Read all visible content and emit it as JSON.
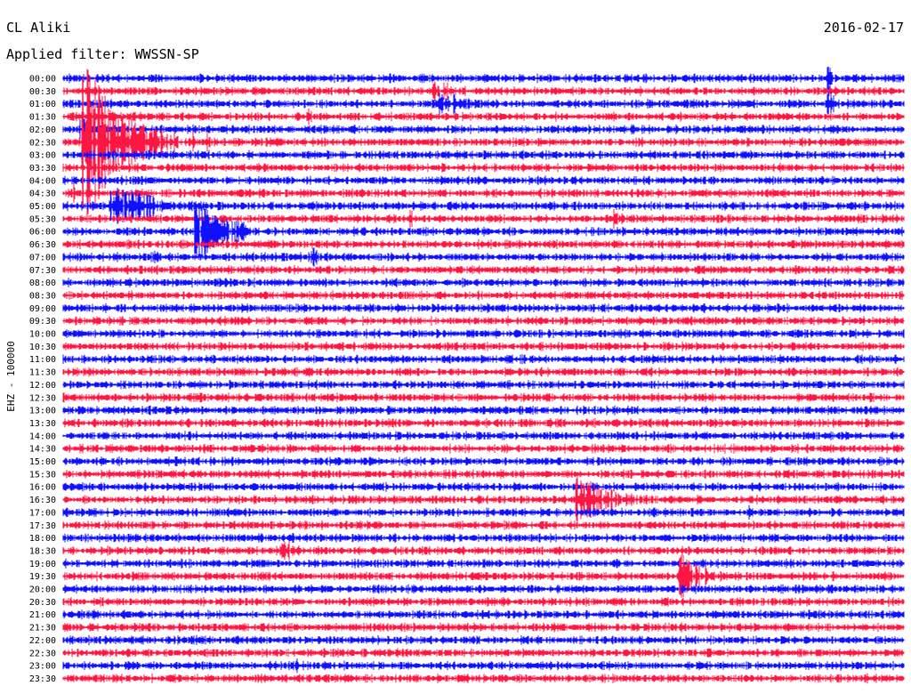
{
  "chart_data": {
    "type": "line",
    "title": "CL Aliki",
    "subtitle": "Applied filter: WWSSN-SP",
    "date": "2016-02-17",
    "ylabel": "EHZ - 100000",
    "grid": false,
    "colors": {
      "even": "#1010ff",
      "odd": "#ff1744"
    },
    "tick_labels": [
      "00:00",
      "00:30",
      "01:00",
      "01:30",
      "02:00",
      "02:30",
      "03:00",
      "03:30",
      "04:00",
      "04:30",
      "05:00",
      "05:30",
      "06:00",
      "06:30",
      "07:00",
      "07:30",
      "08:00",
      "08:30",
      "09:00",
      "09:30",
      "10:00",
      "10:30",
      "11:00",
      "11:30",
      "12:00",
      "12:30",
      "13:00",
      "13:30",
      "14:00",
      "14:30",
      "15:00",
      "15:30",
      "16:00",
      "16:30",
      "17:00",
      "17:30",
      "18:00",
      "18:30",
      "19:00",
      "19:30",
      "20:00",
      "20:30",
      "21:00",
      "21:30",
      "22:00",
      "22:30",
      "23:00",
      "23:30"
    ],
    "minutes_per_line": 30,
    "events": [
      {
        "line": 5,
        "minute": 0.7,
        "amplitude": 10.0,
        "duration": 3.2
      },
      {
        "line": 4,
        "minute": 0.6,
        "amplitude": 1.2,
        "duration": 0.8
      },
      {
        "line": 9,
        "minute": 0.3,
        "amplitude": 0.7,
        "duration": 0.5
      },
      {
        "line": 1,
        "minute": 13.2,
        "amplitude": 0.6,
        "duration": 1.5
      },
      {
        "line": 2,
        "minute": 13.4,
        "amplitude": 1.1,
        "duration": 1.6
      },
      {
        "line": 3,
        "minute": 8.7,
        "amplitude": 0.5,
        "duration": 0.7
      },
      {
        "line": 0,
        "minute": 27.3,
        "amplitude": 1.8,
        "duration": 0.3
      },
      {
        "line": 2,
        "minute": 27.3,
        "amplitude": 1.6,
        "duration": 0.4
      },
      {
        "line": 4,
        "minute": 20.3,
        "amplitude": 0.4,
        "duration": 0.5
      },
      {
        "line": 10,
        "minute": 1.7,
        "amplitude": 2.3,
        "duration": 2.8
      },
      {
        "line": 10,
        "minute": 2.5,
        "amplitude": 0.4,
        "duration": 1.0
      },
      {
        "line": 9,
        "minute": 16.8,
        "amplitude": 0.5,
        "duration": 1.0
      },
      {
        "line": 11,
        "minute": 12.2,
        "amplitude": 0.6,
        "duration": 0.8
      },
      {
        "line": 11,
        "minute": 19.6,
        "amplitude": 0.6,
        "duration": 0.7
      },
      {
        "line": 12,
        "minute": 4.7,
        "amplitude": 3.4,
        "duration": 2.0
      },
      {
        "line": 12,
        "minute": 6.1,
        "amplitude": 0.3,
        "duration": 0.4
      },
      {
        "line": 14,
        "minute": 3.1,
        "amplitude": 0.6,
        "duration": 0.5
      },
      {
        "line": 14,
        "minute": 8.8,
        "amplitude": 0.8,
        "duration": 0.8
      },
      {
        "line": 33,
        "minute": 18.3,
        "amplitude": 2.6,
        "duration": 2.6
      },
      {
        "line": 33,
        "minute": 12.1,
        "amplitude": 0.2,
        "duration": 0.5
      },
      {
        "line": 33,
        "minute": 24.4,
        "amplitude": 0.2,
        "duration": 1.5
      },
      {
        "line": 34,
        "minute": 24.4,
        "amplitude": 0.6,
        "duration": 0.3
      },
      {
        "line": 37,
        "minute": 7.8,
        "amplitude": 0.8,
        "duration": 0.5
      },
      {
        "line": 39,
        "minute": 2.5,
        "amplitude": 0.4,
        "duration": 0.6
      },
      {
        "line": 39,
        "minute": 14.6,
        "amplitude": 0.3,
        "duration": 1.5
      },
      {
        "line": 39,
        "minute": 22.0,
        "amplitude": 2.8,
        "duration": 1.2
      },
      {
        "line": 40,
        "minute": 11.2,
        "amplitude": 0.3,
        "duration": 0.5
      },
      {
        "line": 42,
        "minute": 1.0,
        "amplitude": 0.3,
        "duration": 0.6
      },
      {
        "line": 46,
        "minute": 8.2,
        "amplitude": 0.4,
        "duration": 0.6
      },
      {
        "line": 46,
        "minute": 10.3,
        "amplitude": 0.3,
        "duration": 0.5
      }
    ]
  }
}
